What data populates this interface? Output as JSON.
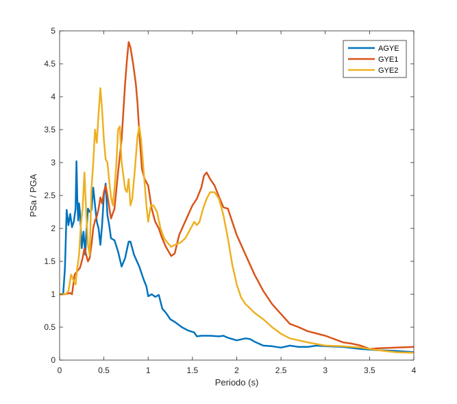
{
  "chart_data": {
    "type": "line",
    "title": "",
    "xlabel": "Periodo (s)",
    "ylabel": "PSa / PGA",
    "xlim": [
      0,
      4
    ],
    "ylim": [
      0,
      5
    ],
    "xticks": [
      0,
      0.5,
      1,
      1.5,
      2,
      2.5,
      3,
      3.5,
      4
    ],
    "xtick_labels": [
      "0",
      "0.5",
      "1",
      "1.5",
      "2",
      "2.5",
      "3",
      "3.5",
      "4"
    ],
    "yticks": [
      0,
      0.5,
      1,
      1.5,
      2,
      2.5,
      3,
      3.5,
      4,
      4.5,
      5
    ],
    "ytick_labels": [
      "0",
      "0.5",
      "1",
      "1.5",
      "2",
      "2.5",
      "3",
      "3.5",
      "4",
      "4.5",
      "5"
    ],
    "grid": false,
    "legend_position": "top-right",
    "series": [
      {
        "name": "AGYE",
        "color": "#0072BD",
        "points": [
          [
            0,
            1.0
          ],
          [
            0.04,
            1.0
          ],
          [
            0.06,
            1.4
          ],
          [
            0.08,
            2.28
          ],
          [
            0.1,
            2.05
          ],
          [
            0.12,
            2.22
          ],
          [
            0.14,
            2.02
          ],
          [
            0.16,
            2.1
          ],
          [
            0.18,
            2.3
          ],
          [
            0.19,
            3.02
          ],
          [
            0.2,
            2.45
          ],
          [
            0.21,
            2.12
          ],
          [
            0.22,
            2.38
          ],
          [
            0.23,
            2.25
          ],
          [
            0.25,
            1.7
          ],
          [
            0.27,
            1.95
          ],
          [
            0.29,
            1.6
          ],
          [
            0.3,
            1.9
          ],
          [
            0.32,
            2.3
          ],
          [
            0.34,
            2.25
          ],
          [
            0.36,
            2.28
          ],
          [
            0.38,
            2.62
          ],
          [
            0.4,
            2.35
          ],
          [
            0.42,
            2.1
          ],
          [
            0.44,
            2.0
          ],
          [
            0.46,
            1.75
          ],
          [
            0.48,
            2.05
          ],
          [
            0.5,
            2.5
          ],
          [
            0.52,
            2.68
          ],
          [
            0.54,
            2.2
          ],
          [
            0.56,
            2.05
          ],
          [
            0.58,
            1.85
          ],
          [
            0.62,
            1.82
          ],
          [
            0.66,
            1.65
          ],
          [
            0.7,
            1.42
          ],
          [
            0.74,
            1.55
          ],
          [
            0.78,
            1.8
          ],
          [
            0.8,
            1.8
          ],
          [
            0.84,
            1.6
          ],
          [
            0.9,
            1.42
          ],
          [
            0.95,
            1.22
          ],
          [
            0.98,
            1.12
          ],
          [
            1.0,
            0.97
          ],
          [
            1.04,
            1.0
          ],
          [
            1.08,
            0.96
          ],
          [
            1.12,
            0.99
          ],
          [
            1.16,
            0.78
          ],
          [
            1.2,
            0.72
          ],
          [
            1.25,
            0.62
          ],
          [
            1.3,
            0.58
          ],
          [
            1.38,
            0.5
          ],
          [
            1.45,
            0.45
          ],
          [
            1.52,
            0.42
          ],
          [
            1.55,
            0.36
          ],
          [
            1.6,
            0.37
          ],
          [
            1.7,
            0.37
          ],
          [
            1.8,
            0.36
          ],
          [
            1.85,
            0.37
          ],
          [
            1.9,
            0.34
          ],
          [
            2.0,
            0.3
          ],
          [
            2.1,
            0.33
          ],
          [
            2.15,
            0.32
          ],
          [
            2.2,
            0.28
          ],
          [
            2.3,
            0.22
          ],
          [
            2.4,
            0.21
          ],
          [
            2.5,
            0.19
          ],
          [
            2.6,
            0.22
          ],
          [
            2.7,
            0.2
          ],
          [
            2.8,
            0.2
          ],
          [
            2.9,
            0.22
          ],
          [
            3.0,
            0.21
          ],
          [
            3.2,
            0.2
          ],
          [
            3.4,
            0.17
          ],
          [
            3.6,
            0.15
          ],
          [
            3.8,
            0.14
          ],
          [
            4.0,
            0.12
          ]
        ]
      },
      {
        "name": "GYE1",
        "color": "#D95319",
        "points": [
          [
            0,
            1.0
          ],
          [
            0.06,
            1.0
          ],
          [
            0.12,
            1.02
          ],
          [
            0.14,
            1.0
          ],
          [
            0.17,
            1.3
          ],
          [
            0.2,
            1.35
          ],
          [
            0.23,
            1.4
          ],
          [
            0.26,
            1.55
          ],
          [
            0.28,
            1.7
          ],
          [
            0.3,
            1.6
          ],
          [
            0.32,
            1.5
          ],
          [
            0.34,
            1.55
          ],
          [
            0.36,
            1.75
          ],
          [
            0.38,
            2.0
          ],
          [
            0.4,
            2.12
          ],
          [
            0.42,
            2.18
          ],
          [
            0.44,
            2.3
          ],
          [
            0.46,
            2.47
          ],
          [
            0.48,
            2.38
          ],
          [
            0.5,
            2.55
          ],
          [
            0.52,
            2.65
          ],
          [
            0.54,
            2.5
          ],
          [
            0.58,
            2.15
          ],
          [
            0.62,
            2.3
          ],
          [
            0.66,
            2.85
          ],
          [
            0.7,
            3.35
          ],
          [
            0.74,
            4.2
          ],
          [
            0.76,
            4.55
          ],
          [
            0.78,
            4.83
          ],
          [
            0.8,
            4.75
          ],
          [
            0.83,
            4.5
          ],
          [
            0.86,
            4.2
          ],
          [
            0.88,
            3.9
          ],
          [
            0.9,
            3.45
          ],
          [
            0.93,
            2.9
          ],
          [
            0.96,
            2.75
          ],
          [
            1.0,
            2.65
          ],
          [
            1.04,
            2.3
          ],
          [
            1.08,
            2.1
          ],
          [
            1.12,
            2.0
          ],
          [
            1.15,
            1.88
          ],
          [
            1.2,
            1.72
          ],
          [
            1.23,
            1.65
          ],
          [
            1.26,
            1.58
          ],
          [
            1.3,
            1.62
          ],
          [
            1.35,
            1.9
          ],
          [
            1.4,
            2.05
          ],
          [
            1.45,
            2.2
          ],
          [
            1.5,
            2.35
          ],
          [
            1.55,
            2.45
          ],
          [
            1.6,
            2.62
          ],
          [
            1.63,
            2.8
          ],
          [
            1.66,
            2.85
          ],
          [
            1.7,
            2.75
          ],
          [
            1.75,
            2.65
          ],
          [
            1.8,
            2.48
          ],
          [
            1.85,
            2.32
          ],
          [
            1.9,
            2.3
          ],
          [
            1.95,
            2.1
          ],
          [
            2.0,
            1.9
          ],
          [
            2.1,
            1.6
          ],
          [
            2.2,
            1.3
          ],
          [
            2.3,
            1.05
          ],
          [
            2.4,
            0.85
          ],
          [
            2.5,
            0.7
          ],
          [
            2.6,
            0.55
          ],
          [
            2.7,
            0.5
          ],
          [
            2.8,
            0.44
          ],
          [
            3.0,
            0.37
          ],
          [
            3.2,
            0.27
          ],
          [
            3.3,
            0.25
          ],
          [
            3.4,
            0.22
          ],
          [
            3.5,
            0.17
          ],
          [
            3.6,
            0.18
          ],
          [
            3.8,
            0.19
          ],
          [
            4.0,
            0.2
          ]
        ]
      },
      {
        "name": "GYE2",
        "color": "#EDB120",
        "points": [
          [
            0,
            1.0
          ],
          [
            0.07,
            1.0
          ],
          [
            0.1,
            1.05
          ],
          [
            0.13,
            1.3
          ],
          [
            0.16,
            1.2
          ],
          [
            0.18,
            1.15
          ],
          [
            0.2,
            1.4
          ],
          [
            0.22,
            1.6
          ],
          [
            0.24,
            2.05
          ],
          [
            0.26,
            2.3
          ],
          [
            0.28,
            2.85
          ],
          [
            0.3,
            2.25
          ],
          [
            0.32,
            1.75
          ],
          [
            0.34,
            1.6
          ],
          [
            0.36,
            2.6
          ],
          [
            0.38,
            3.0
          ],
          [
            0.4,
            3.5
          ],
          [
            0.42,
            3.3
          ],
          [
            0.44,
            3.75
          ],
          [
            0.46,
            4.13
          ],
          [
            0.48,
            3.8
          ],
          [
            0.5,
            3.35
          ],
          [
            0.52,
            3.05
          ],
          [
            0.54,
            3.0
          ],
          [
            0.56,
            2.72
          ],
          [
            0.58,
            2.48
          ],
          [
            0.6,
            2.35
          ],
          [
            0.62,
            2.6
          ],
          [
            0.64,
            2.95
          ],
          [
            0.66,
            3.5
          ],
          [
            0.68,
            3.55
          ],
          [
            0.7,
            3.0
          ],
          [
            0.72,
            2.8
          ],
          [
            0.74,
            2.6
          ],
          [
            0.76,
            2.55
          ],
          [
            0.78,
            2.75
          ],
          [
            0.8,
            2.35
          ],
          [
            0.82,
            2.45
          ],
          [
            0.85,
            2.9
          ],
          [
            0.88,
            3.4
          ],
          [
            0.9,
            3.55
          ],
          [
            0.92,
            3.35
          ],
          [
            0.95,
            2.85
          ],
          [
            0.98,
            2.35
          ],
          [
            1.0,
            2.1
          ],
          [
            1.03,
            2.35
          ],
          [
            1.06,
            2.35
          ],
          [
            1.1,
            2.25
          ],
          [
            1.14,
            2.0
          ],
          [
            1.18,
            1.85
          ],
          [
            1.22,
            1.78
          ],
          [
            1.26,
            1.72
          ],
          [
            1.3,
            1.75
          ],
          [
            1.36,
            1.78
          ],
          [
            1.42,
            1.85
          ],
          [
            1.48,
            2.0
          ],
          [
            1.52,
            2.1
          ],
          [
            1.55,
            2.05
          ],
          [
            1.58,
            2.1
          ],
          [
            1.62,
            2.3
          ],
          [
            1.66,
            2.45
          ],
          [
            1.7,
            2.55
          ],
          [
            1.75,
            2.55
          ],
          [
            1.8,
            2.45
          ],
          [
            1.85,
            2.2
          ],
          [
            1.9,
            1.85
          ],
          [
            1.95,
            1.45
          ],
          [
            2.0,
            1.15
          ],
          [
            2.05,
            0.95
          ],
          [
            2.1,
            0.85
          ],
          [
            2.2,
            0.72
          ],
          [
            2.3,
            0.62
          ],
          [
            2.4,
            0.5
          ],
          [
            2.5,
            0.4
          ],
          [
            2.6,
            0.33
          ],
          [
            2.7,
            0.3
          ],
          [
            2.8,
            0.27
          ],
          [
            3.0,
            0.22
          ],
          [
            3.2,
            0.21
          ],
          [
            3.4,
            0.19
          ],
          [
            3.6,
            0.15
          ],
          [
            3.8,
            0.12
          ],
          [
            4.0,
            0.11
          ]
        ]
      }
    ]
  }
}
